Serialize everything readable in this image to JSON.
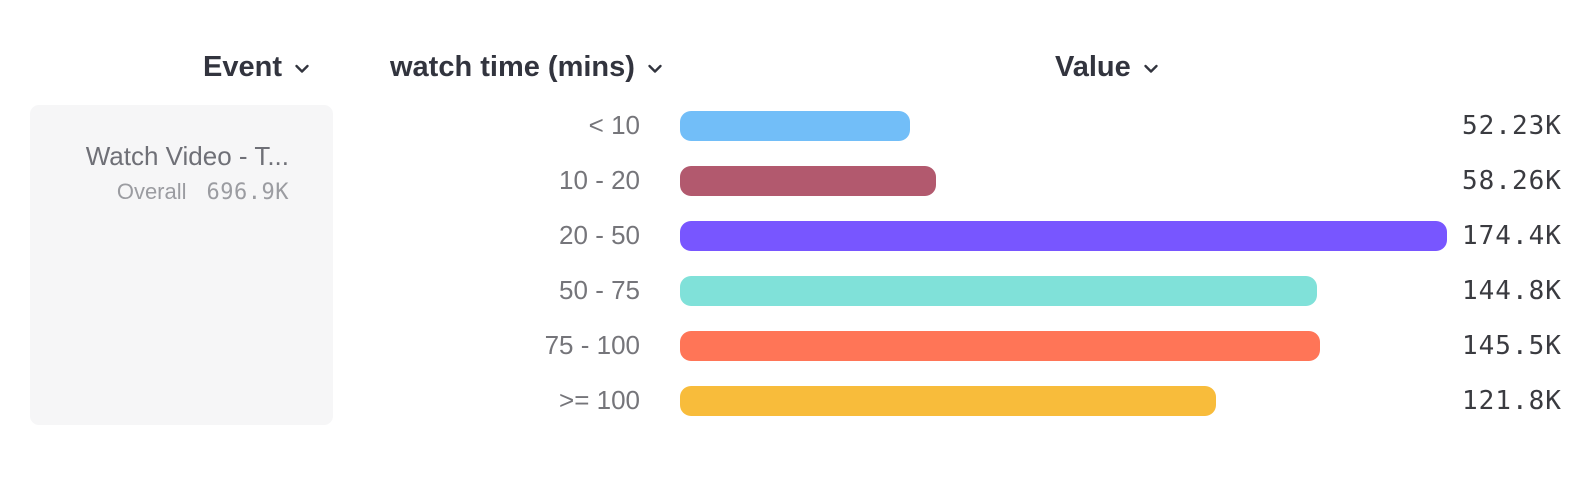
{
  "header": {
    "event_label": "Event",
    "breakdown_label": "watch time (mins)",
    "value_label": "Value"
  },
  "icons": {
    "header_dropdown": "chevron-down"
  },
  "event_card": {
    "title": "Watch Video - T...",
    "overall_label": "Overall",
    "overall_value": "696.9K"
  },
  "chart_data": {
    "type": "bar",
    "orientation": "horizontal",
    "title": "",
    "xlabel": "",
    "ylabel": "watch time (mins)",
    "grid": false,
    "legend": false,
    "categories": [
      "< 10",
      "10 - 20",
      "20 - 50",
      "50 - 75",
      "75 - 100",
      ">= 100"
    ],
    "values": [
      52.23,
      58.26,
      174.4,
      144.8,
      145.5,
      121.8
    ],
    "value_unit": "K",
    "value_labels": [
      "52.23K",
      "58.26K",
      "174.4K",
      "144.8K",
      "145.5K",
      "121.8K"
    ],
    "bar_colors": [
      "#72BEF8",
      "#B2596E",
      "#7856FF",
      "#80E1D9",
      "#FF7557",
      "#F8BC3B"
    ],
    "xlim": [
      0,
      174.4
    ],
    "overall_total": "696.9K"
  }
}
